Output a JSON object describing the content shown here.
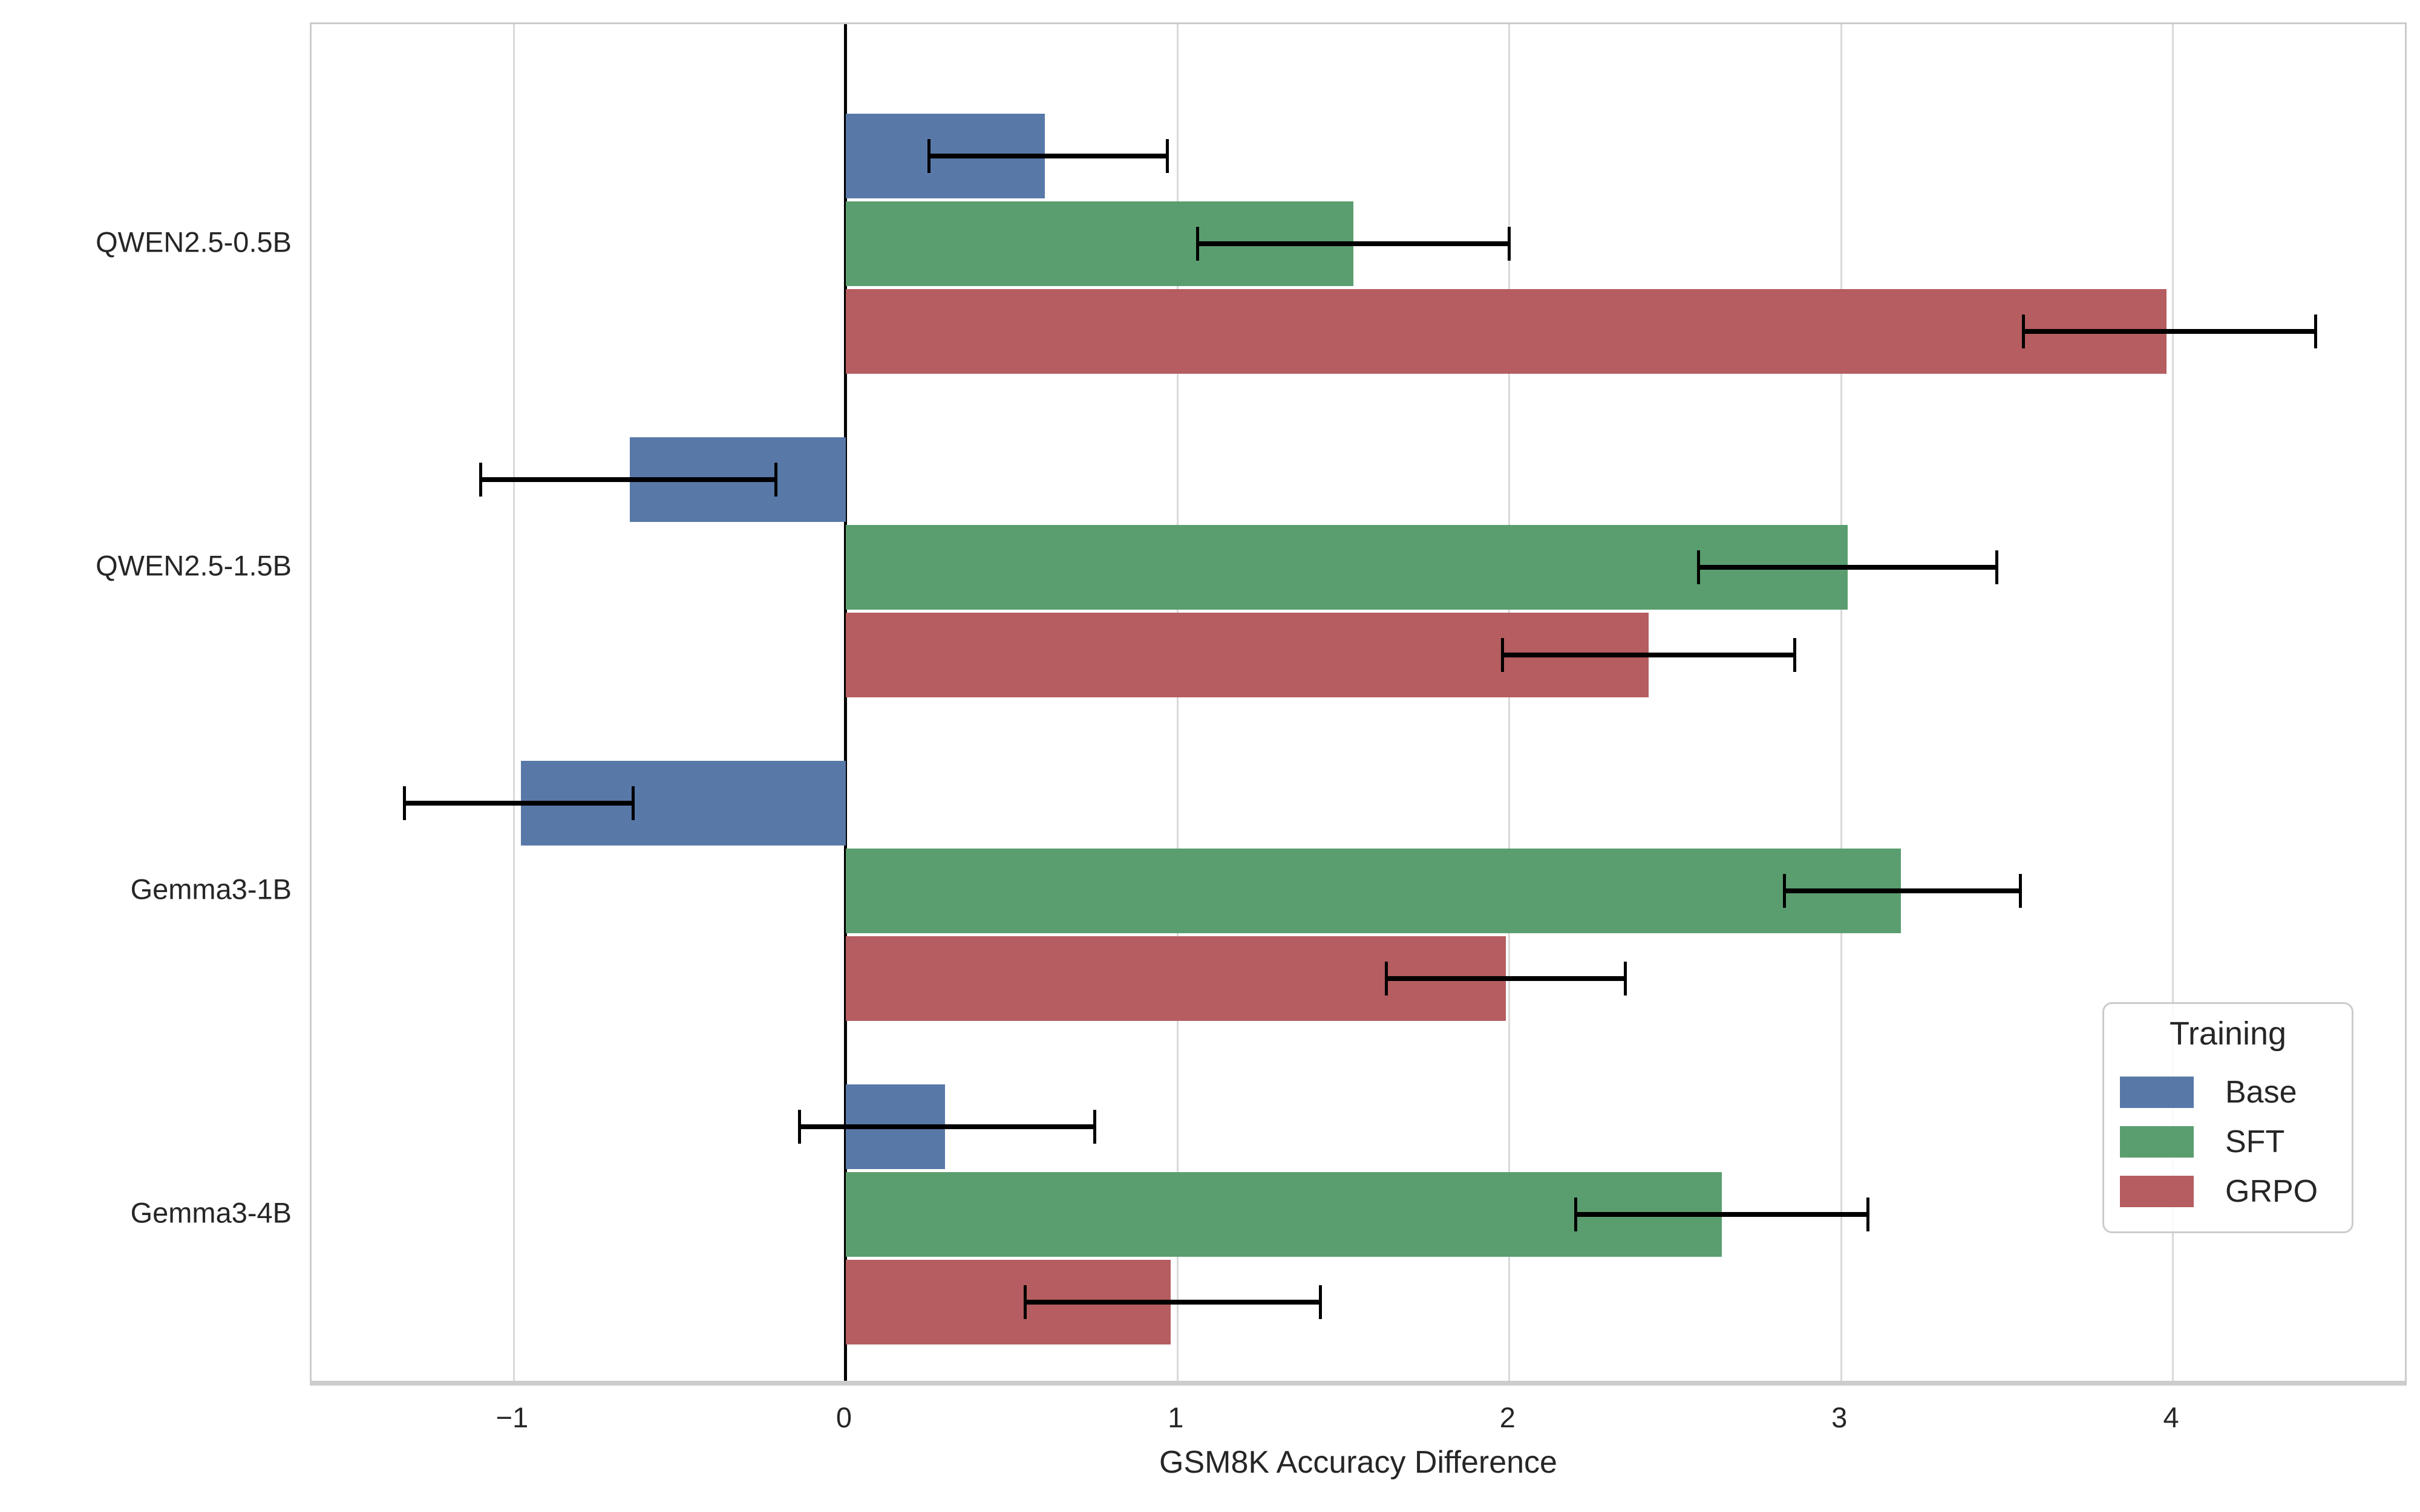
{
  "chart_data": {
    "type": "bar",
    "orientation": "horizontal",
    "xlabel": "GSM8K Accuracy Difference",
    "ylabel": "",
    "categories": [
      "QWEN2.5-0.5B",
      "QWEN2.5-1.5B",
      "Gemma3-1B",
      "Gemma3-4B"
    ],
    "series": [
      {
        "name": "Base",
        "color": "#5878a8",
        "values": [
          0.6,
          -0.65,
          -0.98,
          0.3
        ],
        "err_lo": [
          0.25,
          -1.1,
          -1.33,
          -0.14
        ],
        "err_hi": [
          0.97,
          -0.21,
          -0.64,
          0.75
        ]
      },
      {
        "name": "SFT",
        "color": "#5a9e6f",
        "values": [
          1.53,
          3.02,
          3.18,
          2.64
        ],
        "err_lo": [
          1.06,
          2.57,
          2.83,
          2.2
        ],
        "err_hi": [
          2.0,
          3.47,
          3.54,
          3.08
        ]
      },
      {
        "name": "GRPO",
        "color": "#b55d60",
        "values": [
          3.98,
          2.42,
          1.99,
          0.98
        ],
        "err_lo": [
          3.55,
          1.98,
          1.63,
          0.54
        ],
        "err_hi": [
          4.43,
          2.86,
          2.35,
          1.43
        ]
      }
    ],
    "x_ticks": [
      -1,
      0,
      1,
      2,
      3,
      4
    ],
    "x_tick_labels": [
      "−1",
      "0",
      "1",
      "2",
      "3",
      "4"
    ],
    "xlim": [
      -1.61,
      4.71
    ],
    "grid": true,
    "zero_line": true,
    "error_bars": true,
    "legend": {
      "title": "Training",
      "position": "lower right"
    },
    "colors": {
      "grid": "#d9d9d9",
      "spine": "#cccccc",
      "zero_line": "#000000",
      "error_bar": "#000000",
      "text": "#262626"
    }
  }
}
